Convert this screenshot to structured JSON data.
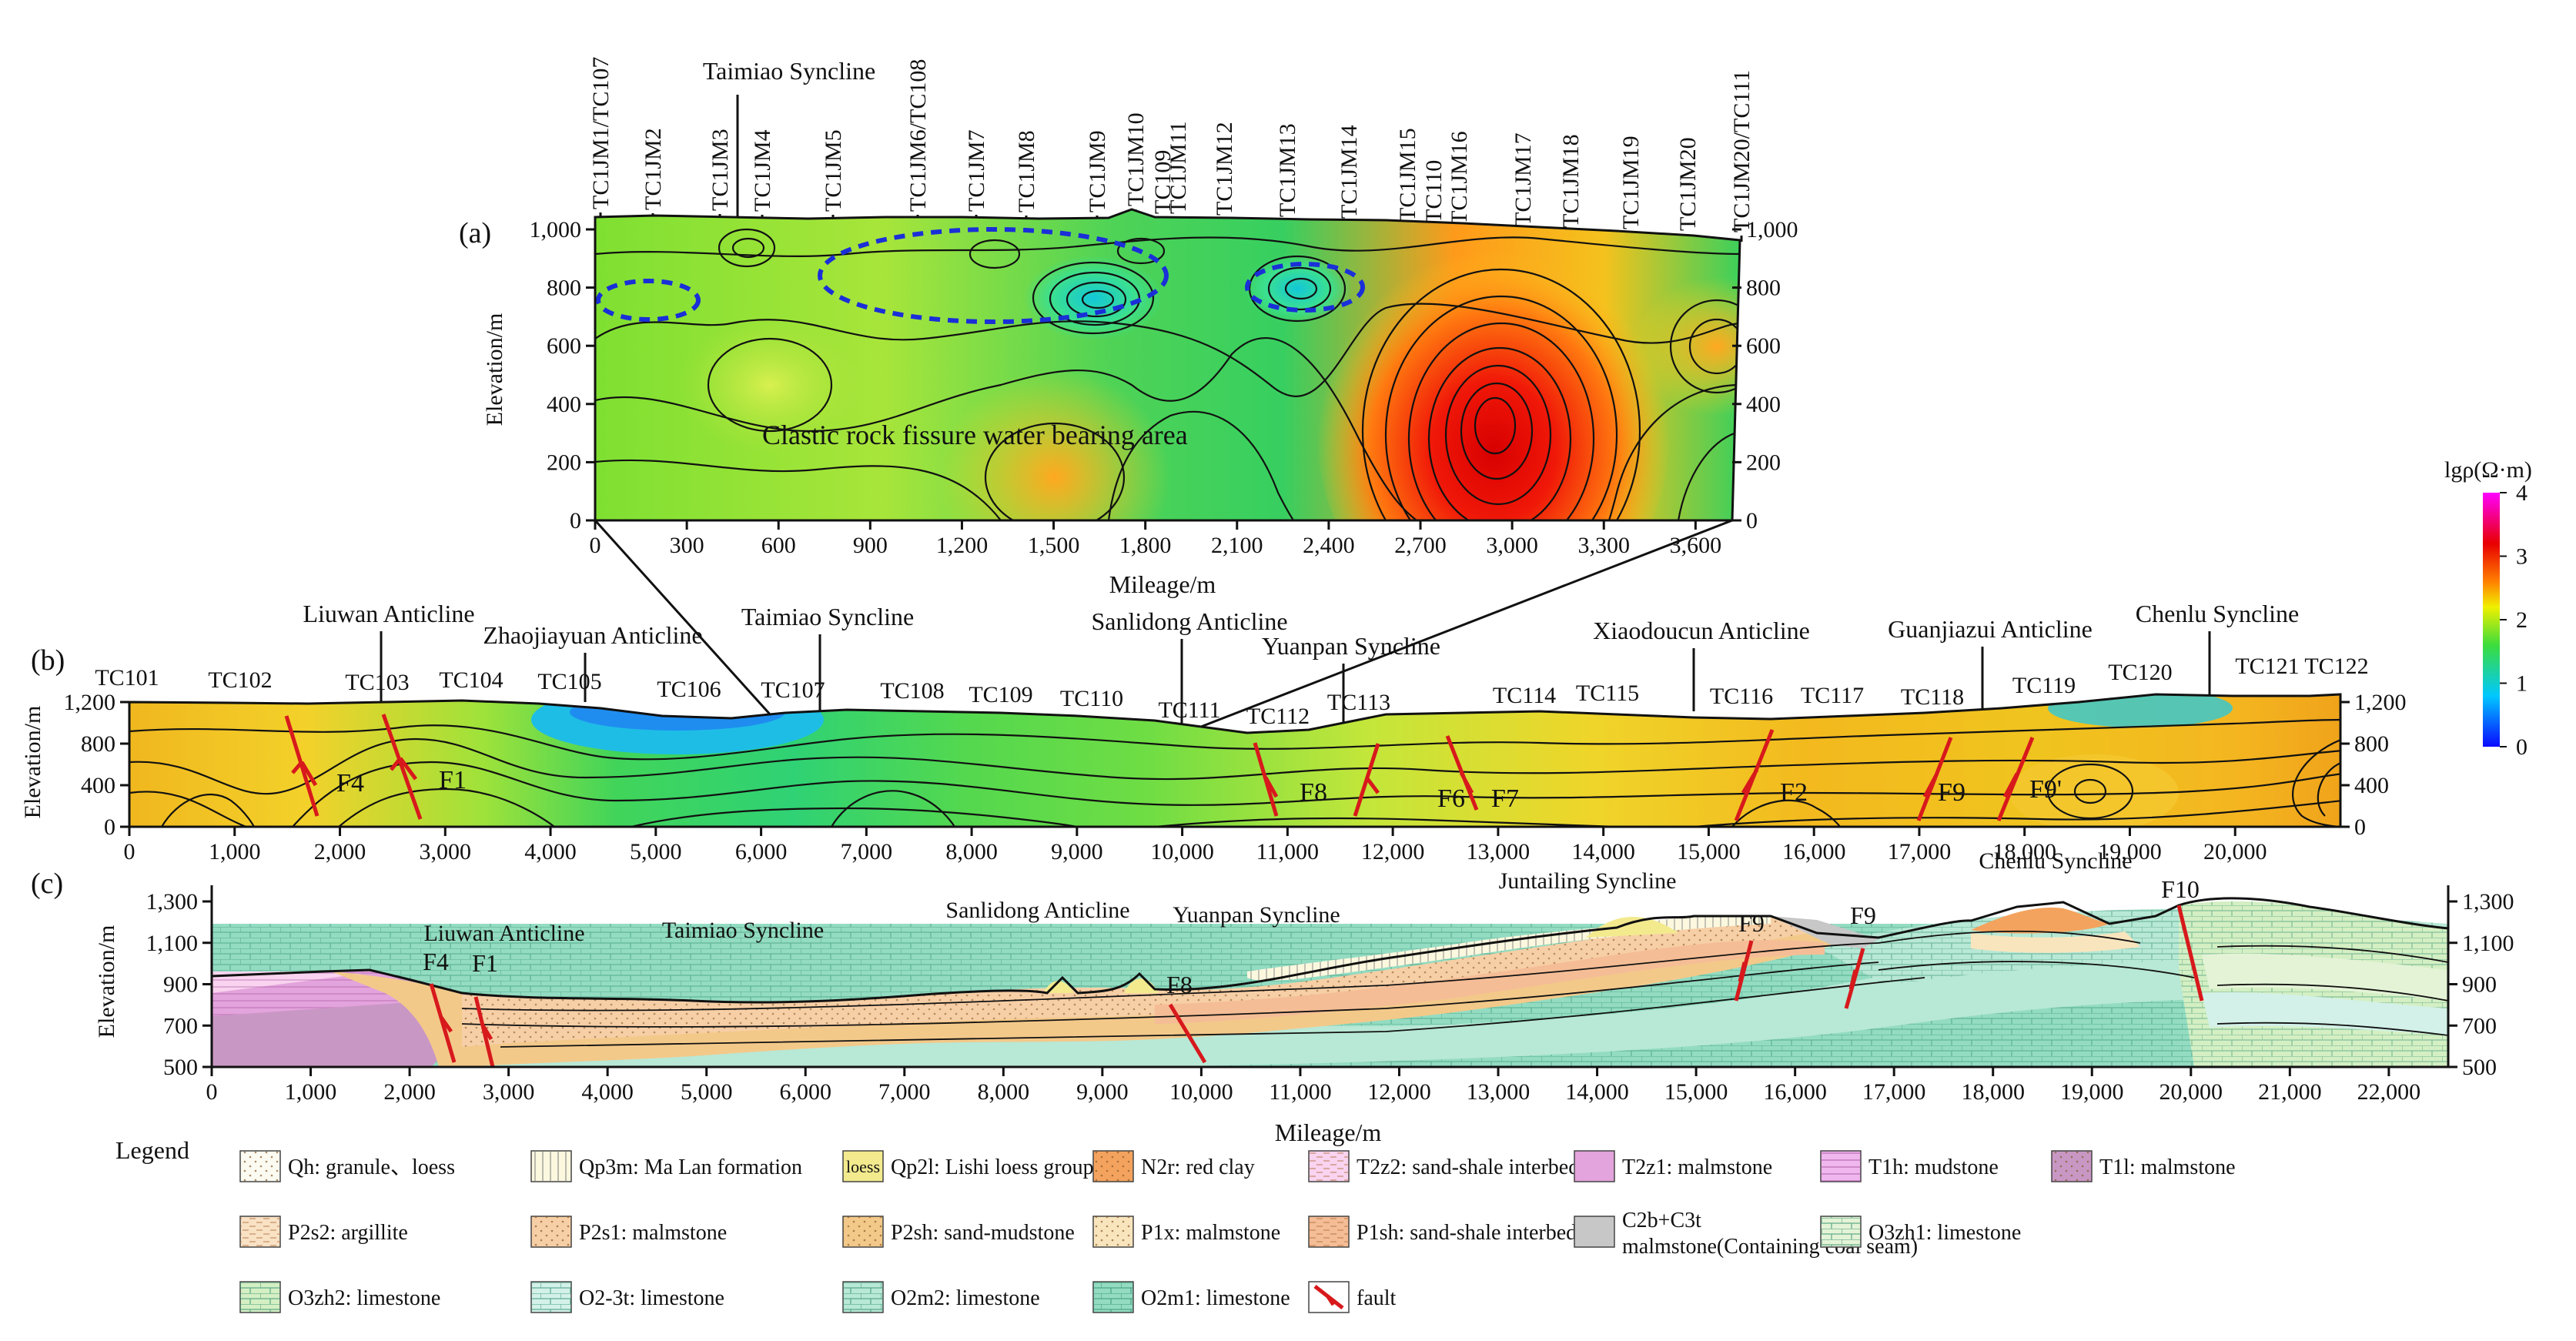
{
  "panel_a": {
    "label": "(a)",
    "stations_top": [
      "TC1JM1/TC107",
      "TC1JM2",
      "TC1JM3",
      "TC1JM4",
      "TC1JM5",
      "TC1JM6/TC108",
      "TC1JM7",
      "TC1JM8",
      "TC1JM9",
      "TC1JM10",
      "TC109",
      "TC1JM11",
      "TC1JM12",
      "TC1JM13",
      "TC1JM14",
      "TC1JM15",
      "TC110",
      "TC1JM16",
      "TC1JM17",
      "TC1JM18",
      "TC1JM19",
      "TC1JM20",
      "TC1JM20/TC111"
    ],
    "structure_label": "Taimiao Syncline",
    "ylabel": "Elevation/m",
    "yticks": [
      "0",
      "200",
      "400",
      "600",
      "800",
      "1,000"
    ],
    "xticks": [
      "0",
      "300",
      "600",
      "900",
      "1,200",
      "1,500",
      "1,800",
      "2,100",
      "2,400",
      "2,700",
      "3,000",
      "3,300",
      "3,600"
    ],
    "xlabel": "Mileage/m",
    "area_label": "Clastic rock fissure water bearing area"
  },
  "colorbar": {
    "title": "lgρ(Ω·m)",
    "ticks": [
      "0",
      "1",
      "2",
      "3",
      "4"
    ],
    "colors": [
      "#0a0aff",
      "#00c8ff",
      "#3cdc3c",
      "#f0f000",
      "#ff8000",
      "#e80000",
      "#ff00ff"
    ]
  },
  "panel_b": {
    "label": "(b)",
    "ylabel": "Elevation/m",
    "yticks": [
      "0",
      "400",
      "800",
      "1,200"
    ],
    "xticks": [
      "0",
      "1,000",
      "2,000",
      "3,000",
      "4,000",
      "5,000",
      "6,000",
      "7,000",
      "8,000",
      "9,000",
      "10,000",
      "11,000",
      "12,000",
      "13,000",
      "14,000",
      "15,000",
      "16,000",
      "17,000",
      "18,000",
      "19,000",
      "20,000"
    ],
    "stations": [
      "TC101",
      "TC102",
      "TC103",
      "TC104",
      "TC105",
      "TC106",
      "TC107",
      "TC108",
      "TC109",
      "TC110",
      "TC111",
      "TC112",
      "TC113",
      "TC114",
      "TC115",
      "TC116",
      "TC117",
      "TC118",
      "TC119",
      "TC120",
      "TC121",
      "TC122"
    ],
    "structures": [
      "Liuwan Anticline",
      "Zhaojiayuan Anticline",
      "Taimiao Syncline",
      "Sanlidong Anticline",
      "Yuanpan Syncline",
      "Xiaodoucun Anticline",
      "Guanjiazui Anticline",
      "Chenlu Syncline"
    ],
    "faults": [
      "F4",
      "F1",
      "F8",
      "F6",
      "F7",
      "F2",
      "F9",
      "F9'"
    ]
  },
  "panel_c": {
    "label": "(c)",
    "ylabel": "Elevation/m",
    "yticks": [
      "500",
      "700",
      "900",
      "1,100",
      "1,300"
    ],
    "xticks": [
      "0",
      "1,000",
      "2,000",
      "3,000",
      "4,000",
      "5,000",
      "6,000",
      "7,000",
      "8,000",
      "9,000",
      "10,000",
      "11,000",
      "12,000",
      "13,000",
      "14,000",
      "15,000",
      "16,000",
      "17,000",
      "18,000",
      "19,000",
      "20,000",
      "21,000",
      "22,000"
    ],
    "xlabel": "Mileage/m",
    "structures": [
      "Liuwan Anticline",
      "Taimiao Syncline",
      "Sanlidong Anticline",
      "Yuanpan Syncline",
      "Juntailing Syncline",
      "Chenlu Syncline"
    ],
    "faults": [
      "F4",
      "F1",
      "F8",
      "F9",
      "F9",
      "F10"
    ]
  },
  "legend": {
    "title": "Legend",
    "items": [
      {
        "label": "Qh: granule、loess",
        "color": "#fbfbf2",
        "pattern": "dots"
      },
      {
        "label": "Qp3m: Ma Lan formation",
        "color": "#fbf8df",
        "pattern": "vlines"
      },
      {
        "label": "Qp2l: Lishi loess group",
        "color": "#f3ea8e",
        "pattern": "loess"
      },
      {
        "label": "N2r: red clay",
        "color": "#f4a35e",
        "pattern": "dots"
      },
      {
        "label": "T2z2: sand-shale interbed",
        "color": "#f9d3ef",
        "pattern": "dash"
      },
      {
        "label": "T2z1: malmstone",
        "color": "#e3a3dc",
        "pattern": "plain"
      },
      {
        "label": "T1h: mudstone",
        "color": "#f0b6ee",
        "pattern": "hlines"
      },
      {
        "label": "T1l: malmstone",
        "color": "#c997c4",
        "pattern": "dots"
      },
      {
        "label": "P2s2: argillite",
        "color": "#f9e1c4",
        "pattern": "dash"
      },
      {
        "label": "P2s1: malmstone",
        "color": "#f7cfa6",
        "pattern": "dots"
      },
      {
        "label": "P2sh: sand-mudstone",
        "color": "#f3c98a",
        "pattern": "dots"
      },
      {
        "label": "P1x: malmstone",
        "color": "#f9e5bd",
        "pattern": "dots"
      },
      {
        "label": "P1sh: sand-shale interbed",
        "color": "#f5bd96",
        "pattern": "dash"
      },
      {
        "label": "C2b+C3t malmstone(Containing coal seam)",
        "color": "#c7c7c7",
        "pattern": "plain"
      },
      {
        "label": "O3zh1: limestone",
        "color": "#e4f3d6",
        "pattern": "brick"
      },
      {
        "label": "O3zh2: limestone",
        "color": "#d4efc3",
        "pattern": "brick"
      },
      {
        "label": "O2-3t: limestone",
        "color": "#d3f1e8",
        "pattern": "brick"
      },
      {
        "label": "O2m2: limestone",
        "color": "#b8e8d6",
        "pattern": "brick"
      },
      {
        "label": "O2m1: limestone",
        "color": "#93dcc2",
        "pattern": "brick"
      },
      {
        "label": "fault",
        "color": "#ffffff",
        "pattern": "fault"
      }
    ]
  }
}
